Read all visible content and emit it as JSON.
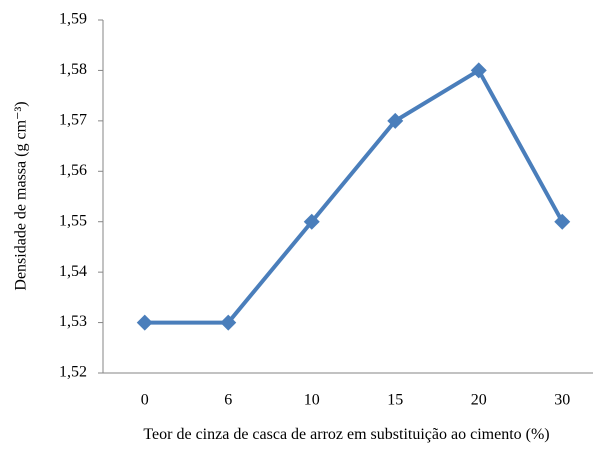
{
  "chart_data": {
    "type": "line",
    "y_label": "Densidade de massa (g cm⁻³)",
    "x_label": "Teor de cinza de casca de arroz em substituição ao cimento (%)",
    "categories": [
      "0",
      "6",
      "10",
      "15",
      "20",
      "30"
    ],
    "values": [
      1.53,
      1.53,
      1.55,
      1.57,
      1.58,
      1.55
    ],
    "color": "#4a7ebb",
    "ylim": [
      1.52,
      1.59
    ],
    "yticks": [
      {
        "value": 1.52,
        "label": "1,52"
      },
      {
        "value": 1.53,
        "label": "1,53"
      },
      {
        "value": 1.54,
        "label": "1,54"
      },
      {
        "value": 1.55,
        "label": "1,55"
      },
      {
        "value": 1.56,
        "label": "1,56"
      },
      {
        "value": 1.57,
        "label": "1,57"
      },
      {
        "value": 1.58,
        "label": "1,58"
      },
      {
        "value": 1.59,
        "label": "1,59"
      }
    ],
    "grid": false
  }
}
